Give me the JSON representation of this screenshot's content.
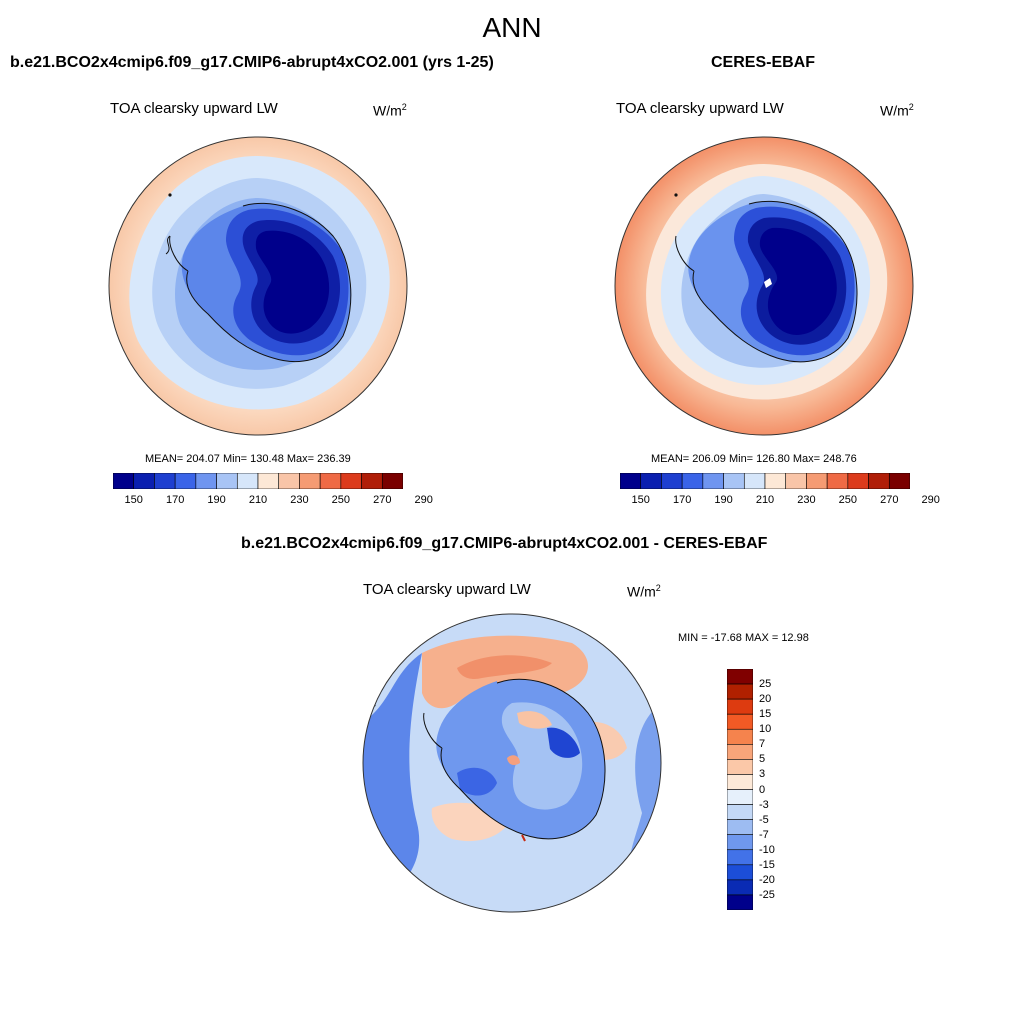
{
  "title": "ANN",
  "panels": [
    {
      "title": "b.e21.BCO2x4cmip6.f09_g17.CMIP6-abrupt4xCO2.001 (yrs 1-25)",
      "variable": "TOA clearsky upward LW",
      "units_base": "W/m",
      "units_exp": "2",
      "stats": "MEAN= 204.07  Min= 130.48  Max= 236.39"
    },
    {
      "title": "CERES-EBAF",
      "variable": "TOA clearsky upward LW",
      "units_base": "W/m",
      "units_exp": "2",
      "stats": "MEAN= 206.09  Min= 126.80  Max= 248.76"
    },
    {
      "title": "b.e21.BCO2x4cmip6.f09_g17.CMIP6-abrupt4xCO2.001 - CERES-EBAF",
      "variable": "TOA clearsky upward LW",
      "units": "W/m",
      "units_exp": "2",
      "stats": "MIN = -17.68 MAX =  12.98"
    }
  ],
  "colorbar_abs": {
    "labels": [
      "150",
      "170",
      "190",
      "210",
      "230",
      "250",
      "270",
      "290"
    ],
    "colors": [
      "#00008b",
      "#0a1fb0",
      "#1e3fd0",
      "#3a64e8",
      "#6f95f0",
      "#a8c4f5",
      "#d6e6fa",
      "#fde8d6",
      "#f9c5a8",
      "#f59b73",
      "#ef6a45",
      "#dc3b1c",
      "#b01e08",
      "#7a0000"
    ]
  },
  "colorbar_diff": {
    "labels": [
      "25",
      "20",
      "15",
      "10",
      "7",
      "5",
      "3",
      "0",
      "-3",
      "-5",
      "-7",
      "-10",
      "-15",
      "-20",
      "-25"
    ],
    "colors": [
      "#800000",
      "#b02000",
      "#dd3b10",
      "#f25a25",
      "#f5834d",
      "#f8a57a",
      "#fbc8a8",
      "#fde9d8",
      "#e6f0fb",
      "#c3d8f6",
      "#9dbcf2",
      "#6f98ee",
      "#4272e8",
      "#1c4ed8",
      "#0a2bb4",
      "#00008b"
    ]
  }
}
